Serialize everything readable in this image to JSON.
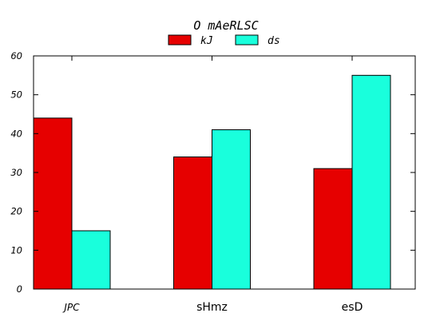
{
  "chart_data": {
    "type": "bar",
    "title": "O mAeRLSC",
    "xlabel": "",
    "ylabel": "",
    "categories": [
      "JPC",
      "sHmz",
      "esD"
    ],
    "series": [
      {
        "name": "kJ",
        "values": [
          44,
          34,
          31
        ],
        "color": "#e60000"
      },
      {
        "name": "ds",
        "values": [
          15,
          41,
          55
        ],
        "color": "#19ffdc"
      }
    ],
    "ylim": [
      0,
      60
    ],
    "yticks": [
      "0",
      "10",
      "20",
      "30",
      "40",
      "50",
      "60"
    ],
    "grid": false,
    "legend": "top-center"
  }
}
